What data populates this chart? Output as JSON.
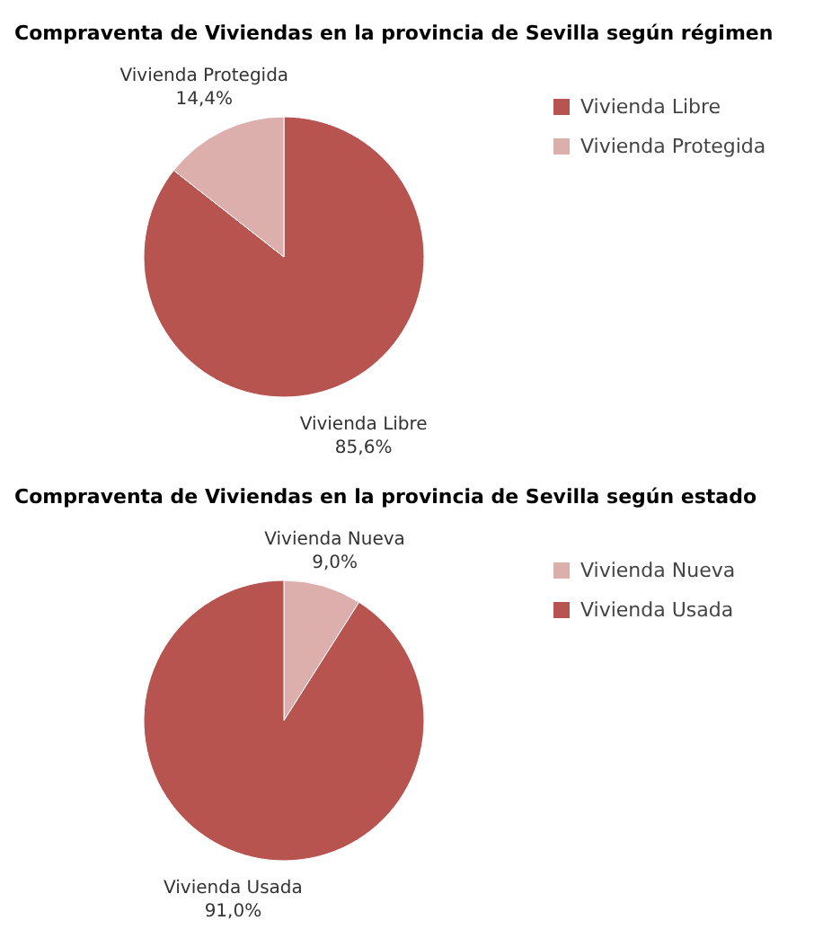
{
  "chart_data": [
    {
      "type": "pie",
      "title": "Compraventa de Viviendas en la provincia de Sevilla según régimen",
      "categories": [
        "Vivienda Libre",
        "Vivienda Protegida"
      ],
      "values": [
        85.6,
        14.4
      ],
      "value_labels": [
        "85,6%",
        "14,4%"
      ],
      "colors": [
        "#b85450",
        "#dcaeac"
      ],
      "legend": "right"
    },
    {
      "type": "pie",
      "title": "Compraventa de Viviendas en la provincia de Sevilla según estado",
      "categories": [
        "Vivienda Nueva",
        "Vivienda Usada"
      ],
      "values": [
        9.0,
        91.0
      ],
      "value_labels": [
        "9,0%",
        "91,0%"
      ],
      "colors": [
        "#dcaeac",
        "#b85450"
      ],
      "legend": "right"
    }
  ]
}
